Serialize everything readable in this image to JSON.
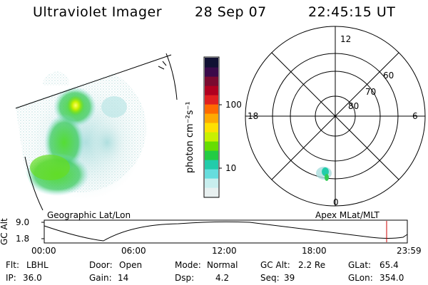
{
  "header": {
    "title": "Ultraviolet Imager",
    "date": "28 Sep 07",
    "time": "22:45:15 UT"
  },
  "colorbar": {
    "label": "photon cm⁻²s⁻¹",
    "ticks": [
      "100",
      "10"
    ],
    "colors": [
      "#111133",
      "#3a0a4a",
      "#7a0a30",
      "#b00020",
      "#e02020",
      "#ff6a00",
      "#ffaa00",
      "#ffe000",
      "#c8f000",
      "#66dd00",
      "#22cc44",
      "#22ccaa",
      "#66dddd",
      "#c8eeee",
      "#e8f0f0"
    ]
  },
  "polar": {
    "mlt_labels": {
      "top": "12",
      "bottom": "0",
      "left": "18",
      "right": "6"
    },
    "lat_labels": [
      "60",
      "70",
      "80"
    ]
  },
  "panel_labels": {
    "left": "Geographic Lat/Lon",
    "right": "Apex MLat/MLT"
  },
  "orbit": {
    "axis_label": "GC Alt",
    "y_ticks": [
      "9.0",
      "1.8"
    ],
    "x_ticks": [
      "00:00",
      "06:00",
      "12:00",
      "18:00",
      "23:59"
    ],
    "current_marker_color": "#cc0000"
  },
  "info": {
    "row1": [
      {
        "key": "Flt:",
        "value": "LBHL"
      },
      {
        "key": "Door:",
        "value": "Open"
      },
      {
        "key": "Mode:",
        "value": "Normal"
      },
      {
        "key": "GC Alt:",
        "value": "2.2 Re"
      },
      {
        "key": "GLat:",
        "value": "65.4"
      }
    ],
    "row2": [
      {
        "key": "IP:",
        "value": "36.0"
      },
      {
        "key": "Gain:",
        "value": "14"
      },
      {
        "key": "Dsp:",
        "value": "4.2"
      },
      {
        "key": "Seq:",
        "value": "39"
      },
      {
        "key": "GLon:",
        "value": "354.0"
      }
    ]
  }
}
